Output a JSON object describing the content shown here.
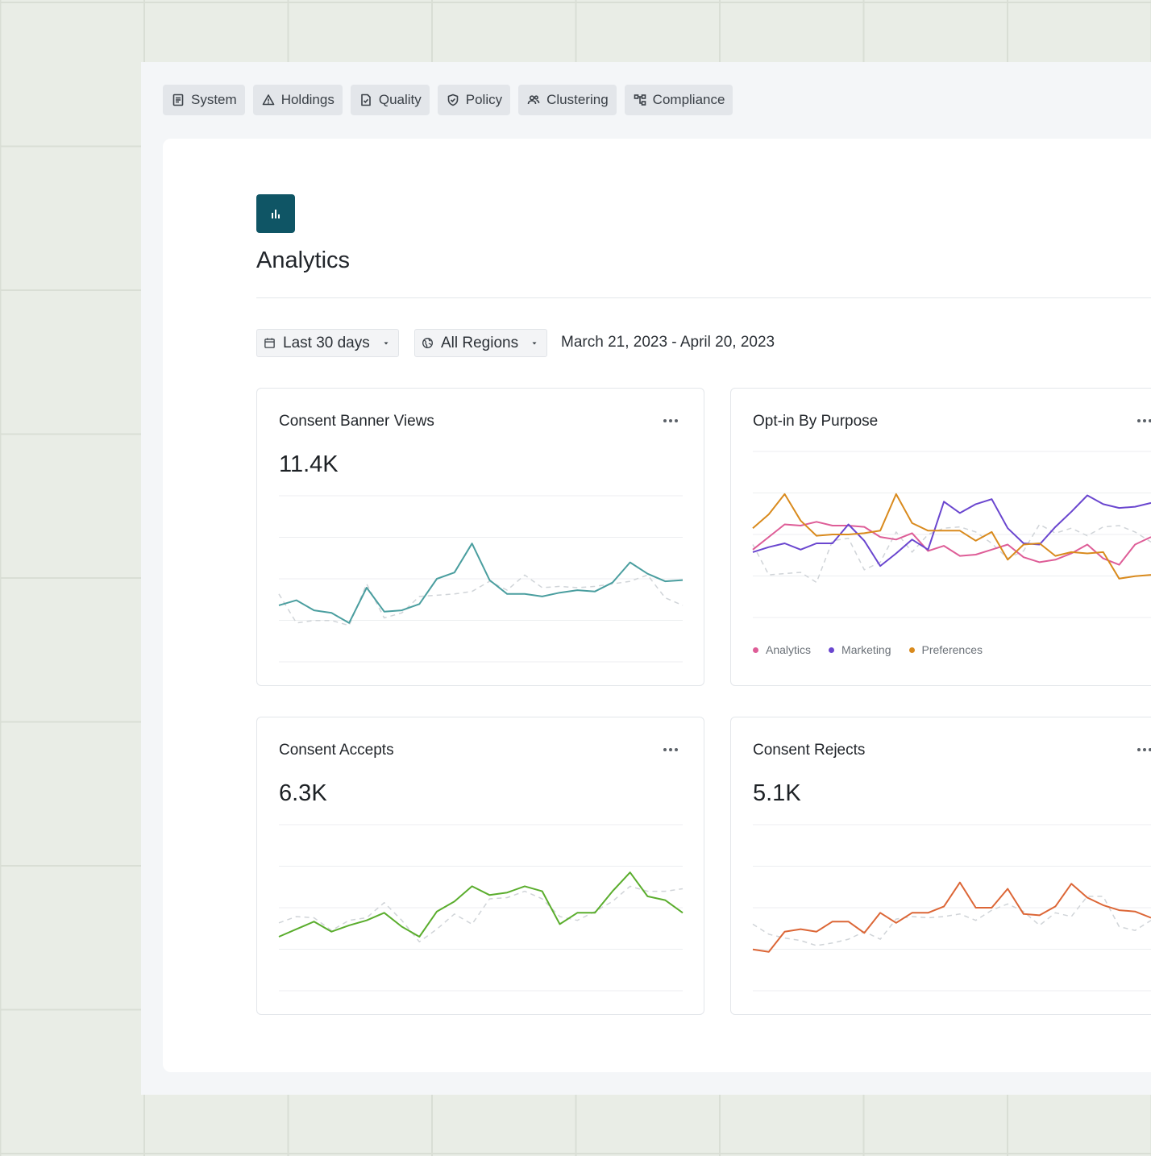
{
  "tabs": [
    {
      "label": "System",
      "icon": "document-icon"
    },
    {
      "label": "Holdings",
      "icon": "warning-triangle-icon"
    },
    {
      "label": "Quality",
      "icon": "file-check-icon"
    },
    {
      "label": "Policy",
      "icon": "shield-check-icon"
    },
    {
      "label": "Clustering",
      "icon": "users-icon"
    },
    {
      "label": "Compliance",
      "icon": "hierarchy-icon"
    }
  ],
  "page": {
    "title": "Analytics",
    "logo_icon": "bar-chart-icon",
    "brand_color": "#0f5565"
  },
  "filters": {
    "period": "Last 30 days",
    "region": "All Regions",
    "date_range": "March 21, 2023 - April 20, 2023"
  },
  "cards": {
    "views": {
      "title": "Consent Banner Views",
      "value": "11.4K"
    },
    "optin": {
      "title": "Opt-in By Purpose"
    },
    "accepts": {
      "title": "Consent Accepts",
      "value": "6.3K"
    },
    "rejects": {
      "title": "Consent Rejects",
      "value": "5.1K"
    }
  },
  "chart_data": [
    {
      "id": "views",
      "type": "line",
      "title": "Consent Banner Views",
      "ylim": [
        0,
        100
      ],
      "grid": true,
      "series": [
        {
          "color": "#4a9e9f",
          "values": [
            29,
            33,
            25,
            23,
            15,
            43,
            24,
            25,
            30,
            50,
            55,
            78,
            49,
            38,
            38,
            36,
            39,
            41,
            40,
            47,
            63,
            54,
            48,
            49
          ]
        },
        {
          "color": "#d0d4d8",
          "dashed": true,
          "values": [
            38,
            15,
            17,
            17,
            13,
            46,
            19,
            23,
            36,
            37,
            38,
            40,
            48,
            41,
            53,
            43,
            44,
            43,
            44,
            46,
            48,
            53,
            35,
            29
          ]
        }
      ]
    },
    {
      "id": "optin",
      "type": "line",
      "title": "Opt-in By Purpose",
      "ylim": [
        0,
        100
      ],
      "grid": true,
      "legend": "bottom",
      "series": [
        {
          "name": "Analytics",
          "color": "#de5d97",
          "values": [
            38,
            48,
            58,
            57,
            60,
            57,
            57,
            56,
            48,
            46,
            51,
            37,
            41,
            33,
            34,
            38,
            42,
            32,
            28,
            30,
            35,
            42,
            31,
            26,
            42,
            48
          ]
        },
        {
          "name": "Marketing",
          "color": "#6a46cf",
          "values": [
            36,
            40,
            43,
            38,
            43,
            43,
            58,
            45,
            25,
            35,
            46,
            38,
            76,
            67,
            74,
            78,
            55,
            43,
            42,
            56,
            68,
            81,
            74,
            71,
            72,
            75
          ]
        },
        {
          "name": "Preferences",
          "color": "#d98a1d",
          "values": [
            55,
            66,
            82,
            61,
            49,
            50,
            50,
            51,
            53,
            82,
            59,
            53,
            53,
            53,
            45,
            52,
            30,
            42,
            43,
            33,
            36,
            35,
            36,
            15,
            17,
            18
          ]
        },
        {
          "color": "#d0d4d8",
          "dashed": true,
          "values": [
            42,
            18,
            19,
            20,
            12,
            45,
            47,
            22,
            28,
            52,
            36,
            50,
            55,
            56,
            52,
            43,
            31,
            37,
            58,
            51,
            55,
            49,
            56,
            57,
            52,
            44
          ]
        }
      ]
    },
    {
      "id": "accepts",
      "type": "line",
      "title": "Consent Accepts",
      "ylim": [
        0,
        100
      ],
      "grid": true,
      "series": [
        {
          "color": "#5aad2d",
          "values": [
            27,
            33,
            39,
            31,
            36,
            40,
            46,
            35,
            27,
            47,
            55,
            67,
            60,
            62,
            67,
            63,
            37,
            46,
            46,
            63,
            78,
            59,
            56,
            46
          ]
        },
        {
          "color": "#d0d4d8",
          "dashed": true,
          "values": [
            38,
            43,
            42,
            32,
            40,
            42,
            54,
            40,
            23,
            33,
            45,
            37,
            57,
            58,
            63,
            57,
            43,
            40,
            47,
            55,
            67,
            63,
            63,
            65
          ]
        }
      ]
    },
    {
      "id": "rejects",
      "type": "line",
      "title": "Consent Rejects",
      "ylim": [
        0,
        100
      ],
      "grid": true,
      "series": [
        {
          "color": "#dc6636",
          "values": [
            17,
            15,
            31,
            33,
            31,
            39,
            39,
            30,
            46,
            38,
            46,
            46,
            51,
            70,
            50,
            50,
            65,
            45,
            44,
            51,
            69,
            58,
            52,
            48,
            47,
            42
          ]
        },
        {
          "color": "#d0d4d8",
          "dashed": true,
          "values": [
            37,
            29,
            26,
            24,
            20,
            22,
            25,
            31,
            25,
            41,
            43,
            42,
            43,
            45,
            40,
            48,
            53,
            47,
            36,
            46,
            43,
            59,
            59,
            35,
            32,
            40
          ]
        }
      ]
    }
  ]
}
